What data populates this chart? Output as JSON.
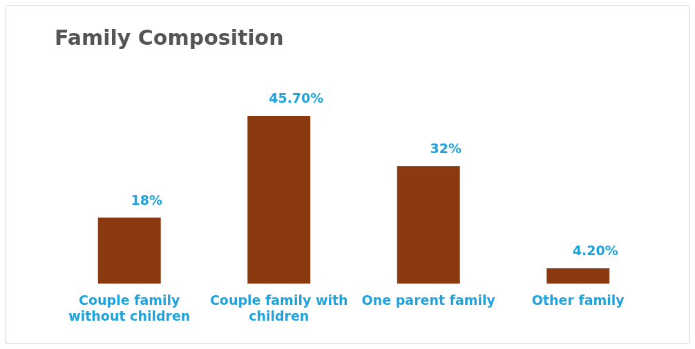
{
  "chart_data": {
    "type": "bar",
    "title": "Family Composition",
    "categories": [
      "Couple family without children",
      "Couple family with children",
      "One parent family",
      "Other family"
    ],
    "values": [
      18,
      45.7,
      32,
      4.2
    ],
    "value_labels": [
      "18%",
      "45.70%",
      "32%",
      "4.20%"
    ],
    "color": "#8b3a0f",
    "grid": false,
    "legend": false
  }
}
